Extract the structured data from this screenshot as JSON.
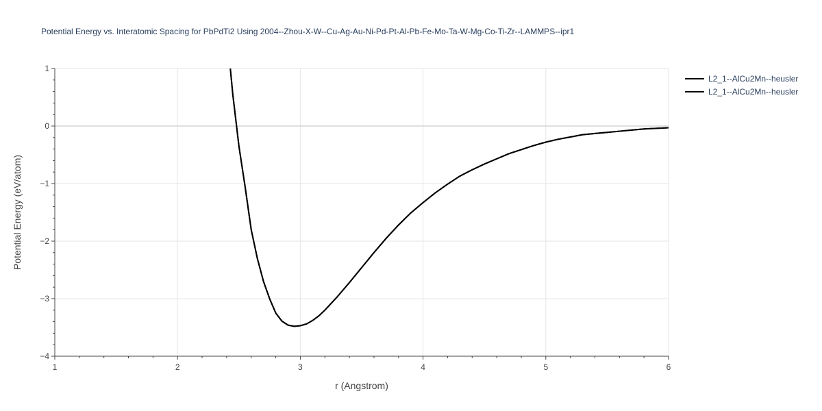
{
  "chart_data": {
    "type": "line",
    "title": "Potential Energy vs. Interatomic Spacing for PbPdTi2 Using 2004--Zhou-X-W--Cu-Ag-Au-Ni-Pd-Pt-Al-Pb-Fe-Mo-Ta-W-Mg-Co-Ti-Zr--LAMMPS--ipr1",
    "xlabel": "r (Angstrom)",
    "ylabel": "Potential Energy (eV/atom)",
    "xlim": [
      1,
      6
    ],
    "ylim": [
      -4,
      1
    ],
    "xticks": [
      1,
      2,
      3,
      4,
      5,
      6
    ],
    "xtick_labels": [
      "1",
      "2",
      "3",
      "4",
      "5",
      "6"
    ],
    "yticks": [
      -4,
      -3,
      -2,
      -1,
      0,
      1
    ],
    "ytick_labels": [
      "−4",
      "−3",
      "−2",
      "−1",
      "0",
      "1"
    ],
    "grid": true,
    "legend_position": "top-right",
    "series": [
      {
        "name": "L2_1--AlCu2Mn--heusler",
        "color": "#000000",
        "x": [
          2.43,
          2.45,
          2.5,
          2.55,
          2.6,
          2.65,
          2.7,
          2.75,
          2.8,
          2.85,
          2.9,
          2.95,
          3.0,
          3.05,
          3.1,
          3.15,
          3.2,
          3.3,
          3.4,
          3.5,
          3.6,
          3.7,
          3.8,
          3.9,
          4.0,
          4.1,
          4.2,
          4.3,
          4.4,
          4.5,
          4.6,
          4.7,
          4.8,
          4.9,
          5.0,
          5.1,
          5.2,
          5.3,
          5.4,
          5.5,
          5.6,
          5.7,
          5.8,
          5.9,
          6.0
        ],
        "y": [
          1.0,
          0.55,
          -0.35,
          -1.05,
          -1.8,
          -2.3,
          -2.7,
          -3.0,
          -3.25,
          -3.39,
          -3.46,
          -3.48,
          -3.47,
          -3.44,
          -3.38,
          -3.3,
          -3.2,
          -2.97,
          -2.72,
          -2.46,
          -2.2,
          -1.95,
          -1.72,
          -1.51,
          -1.33,
          -1.16,
          -1.01,
          -0.87,
          -0.76,
          -0.66,
          -0.57,
          -0.48,
          -0.41,
          -0.34,
          -0.28,
          -0.23,
          -0.19,
          -0.15,
          -0.13,
          -0.11,
          -0.09,
          -0.07,
          -0.05,
          -0.04,
          -0.03
        ]
      },
      {
        "name": "L2_1--AlCu2Mn--heusler",
        "color": "#000000",
        "x": [
          2.43,
          2.45,
          2.5,
          2.55,
          2.6,
          2.65,
          2.7,
          2.75,
          2.8,
          2.85,
          2.9,
          2.95,
          3.0,
          3.05,
          3.1,
          3.15,
          3.2,
          3.3,
          3.4,
          3.5,
          3.6,
          3.7,
          3.8,
          3.9,
          4.0,
          4.1,
          4.2,
          4.3,
          4.4,
          4.5,
          4.6,
          4.7,
          4.8,
          4.9,
          5.0,
          5.1,
          5.2,
          5.3,
          5.4,
          5.5,
          5.6,
          5.7,
          5.8,
          5.9,
          6.0
        ],
        "y": [
          1.0,
          0.55,
          -0.35,
          -1.05,
          -1.8,
          -2.3,
          -2.7,
          -3.0,
          -3.25,
          -3.39,
          -3.46,
          -3.48,
          -3.47,
          -3.44,
          -3.38,
          -3.3,
          -3.2,
          -2.97,
          -2.72,
          -2.46,
          -2.2,
          -1.95,
          -1.72,
          -1.51,
          -1.33,
          -1.16,
          -1.01,
          -0.87,
          -0.76,
          -0.66,
          -0.57,
          -0.48,
          -0.41,
          -0.34,
          -0.28,
          -0.23,
          -0.19,
          -0.15,
          -0.13,
          -0.11,
          -0.09,
          -0.07,
          -0.05,
          -0.04,
          -0.03
        ]
      }
    ]
  }
}
